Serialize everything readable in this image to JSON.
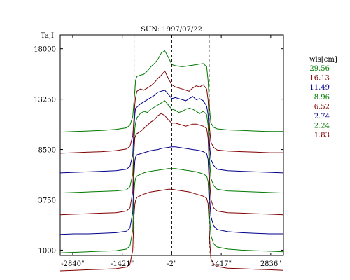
{
  "chart_data": {
    "type": "line",
    "title": "SUN: 1997/07/22",
    "ylabel": "Ta,I",
    "xlabel": "",
    "xlim": [
      -3200,
      3200
    ],
    "ylim": [
      -1500,
      19300
    ],
    "x_ticks": [
      {
        "value": -2840,
        "label": "-2840\""
      },
      {
        "value": -1421,
        "label": "-1421\""
      },
      {
        "value": -2,
        "label": "-2\""
      },
      {
        "value": 1417,
        "label": "1417\""
      },
      {
        "value": 2836,
        "label": "2836\""
      }
    ],
    "y_ticks": [
      {
        "value": -1000,
        "label": "-1000"
      },
      {
        "value": 3750,
        "label": "3750"
      },
      {
        "value": 8500,
        "label": "8500"
      },
      {
        "value": 13250,
        "label": "13250"
      },
      {
        "value": 18000,
        "label": "18000"
      }
    ],
    "vlines": [
      -1082,
      -2,
      1070
    ],
    "legend_title": "wls[cm]",
    "grid": false,
    "legend_position": "right",
    "x": [
      -3200,
      -2800,
      -2400,
      -2000,
      -1600,
      -1300,
      -1200,
      -1120,
      -1085,
      -1060,
      -1040,
      -1000,
      -900,
      -800,
      -700,
      -600,
      -500,
      -400,
      -300,
      -200,
      -100,
      0,
      100,
      200,
      300,
      400,
      500,
      600,
      700,
      800,
      900,
      1000,
      1040,
      1060,
      1085,
      1120,
      1200,
      1300,
      1600,
      2000,
      2400,
      2800,
      3200
    ],
    "series": [
      {
        "name": "29.56",
        "color": "#007a00",
        "values": [
          10150,
          10200,
          10250,
          10300,
          10400,
          10550,
          10800,
          11600,
          13000,
          14000,
          15000,
          15400,
          15500,
          15600,
          15900,
          16300,
          16600,
          17000,
          17600,
          17800,
          17200,
          16500,
          16400,
          16350,
          16300,
          16350,
          16400,
          16450,
          16500,
          16550,
          16600,
          16300,
          15000,
          13800,
          12200,
          11000,
          10600,
          10450,
          10350,
          10300,
          10250,
          10200,
          10200
        ]
      },
      {
        "name": "16.13",
        "color": "#800000",
        "values": [
          8150,
          8200,
          8250,
          8300,
          8400,
          8550,
          8800,
          9800,
          11500,
          12800,
          13400,
          14000,
          14200,
          14100,
          14300,
          14500,
          14800,
          15200,
          15500,
          15900,
          15200,
          14600,
          14400,
          14300,
          14200,
          14100,
          14000,
          14300,
          14500,
          14400,
          14600,
          14200,
          13200,
          12000,
          10400,
          9200,
          8700,
          8450,
          8350,
          8300,
          8250,
          8200,
          8200
        ]
      },
      {
        "name": "11.49",
        "color": "#00008b",
        "values": [
          6300,
          6350,
          6400,
          6450,
          6500,
          6650,
          6900,
          8000,
          10500,
          11800,
          12400,
          12500,
          12800,
          13000,
          13200,
          13400,
          13600,
          13900,
          14000,
          14100,
          13700,
          13300,
          13400,
          13300,
          13200,
          13100,
          13300,
          13500,
          13200,
          13300,
          13100,
          12600,
          11800,
          10500,
          8800,
          7600,
          7000,
          6650,
          6500,
          6450,
          6400,
          6350,
          6300
        ]
      },
      {
        "name": "8.96",
        "color": "#007a00",
        "values": [
          4400,
          4450,
          4500,
          4550,
          4600,
          4700,
          5000,
          6200,
          9000,
          10500,
          11000,
          11500,
          11900,
          12100,
          12000,
          12300,
          12500,
          12700,
          12900,
          13100,
          12700,
          12300,
          12200,
          12000,
          12100,
          12300,
          12400,
          12300,
          12100,
          11900,
          12100,
          11800,
          10800,
          9200,
          7400,
          5800,
          5100,
          4750,
          4600,
          4550,
          4500,
          4450,
          4400
        ]
      },
      {
        "name": "6.52",
        "color": "#800000",
        "values": [
          2350,
          2400,
          2450,
          2500,
          2550,
          2700,
          3000,
          4500,
          8300,
          9600,
          9800,
          10000,
          10200,
          10500,
          10800,
          11100,
          11300,
          11700,
          11900,
          11700,
          11300,
          11000,
          11000,
          10900,
          10800,
          10700,
          10800,
          10900,
          10900,
          10800,
          10700,
          10500,
          9600,
          8000,
          5500,
          3800,
          3000,
          2700,
          2550,
          2500,
          2450,
          2400,
          2350
        ]
      },
      {
        "name": "2.74",
        "color": "#00008b",
        "values": [
          500,
          550,
          550,
          600,
          650,
          800,
          1100,
          2600,
          6000,
          7400,
          7800,
          8000,
          8100,
          8200,
          8300,
          8400,
          8450,
          8500,
          8600,
          8650,
          8700,
          8750,
          8750,
          8700,
          8650,
          8600,
          8550,
          8500,
          8450,
          8400,
          8300,
          8100,
          7600,
          6200,
          3800,
          2200,
          1300,
          950,
          750,
          650,
          600,
          550,
          550
        ]
      },
      {
        "name": "2.24",
        "color": "#007a00",
        "values": [
          -1250,
          -1200,
          -1150,
          -1100,
          -1050,
          -900,
          -600,
          900,
          4300,
          5400,
          5800,
          6000,
          6150,
          6300,
          6400,
          6450,
          6500,
          6550,
          6600,
          6650,
          6700,
          6700,
          6700,
          6650,
          6600,
          6550,
          6500,
          6450,
          6400,
          6300,
          6200,
          6000,
          5500,
          4200,
          2000,
          400,
          -400,
          -700,
          -900,
          -1000,
          -1050,
          -1100,
          -1150
        ]
      },
      {
        "name": "1.83",
        "color": "#800000",
        "values": [
          -2950,
          -2900,
          -2850,
          -2800,
          -2750,
          -2600,
          -2300,
          -1000,
          2200,
          3300,
          3700,
          4000,
          4150,
          4300,
          4400,
          4500,
          4550,
          4600,
          4650,
          4700,
          4750,
          4750,
          4700,
          4650,
          4600,
          4550,
          4500,
          4400,
          4300,
          4200,
          4100,
          3900,
          3400,
          2200,
          0,
          -1800,
          -2300,
          -2550,
          -2700,
          -2750,
          -2800,
          -2850,
          -2900
        ]
      }
    ]
  }
}
